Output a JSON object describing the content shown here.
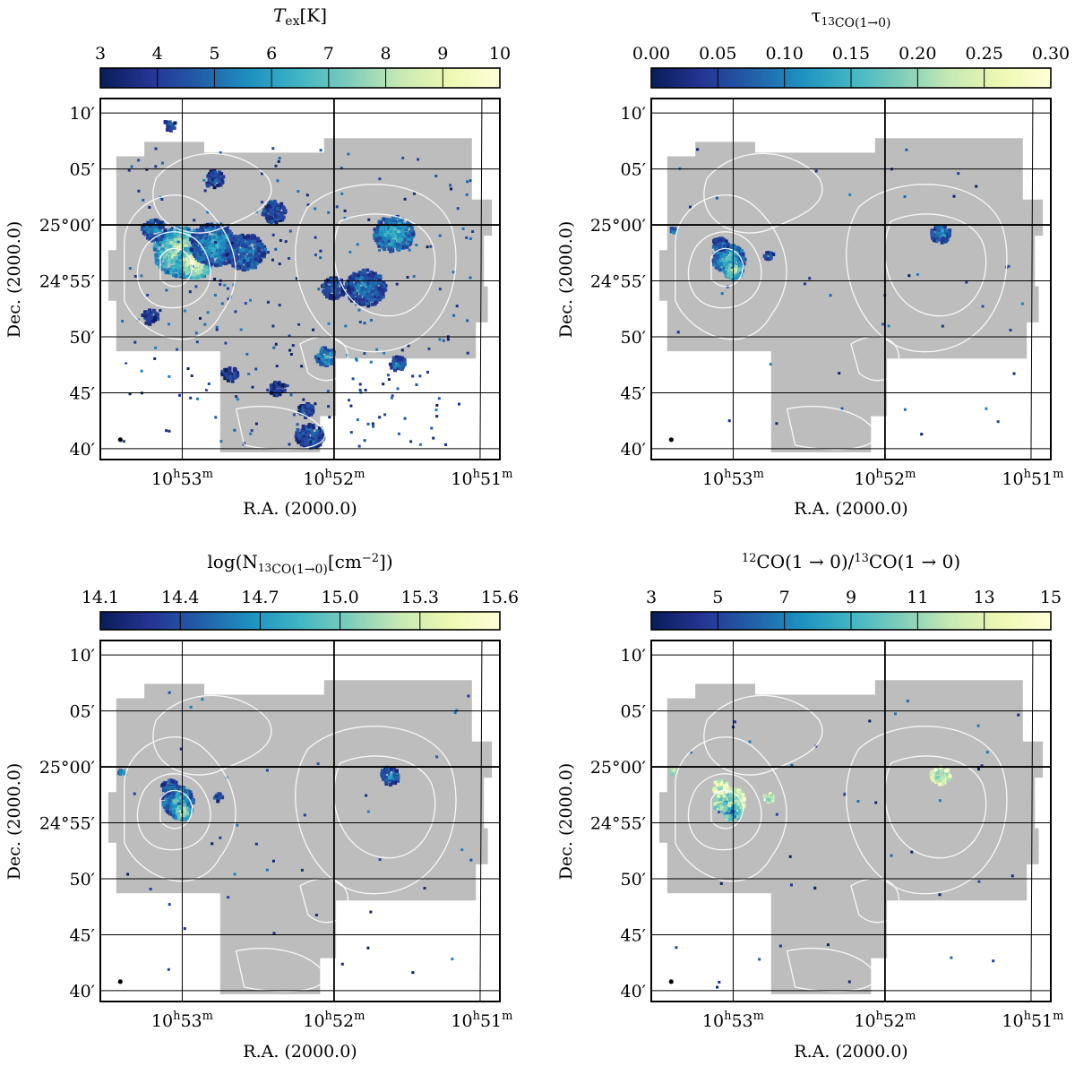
{
  "chart_data": [
    {
      "type": "heatmap",
      "title": "T_ex [K]",
      "title_parts": {
        "var": "T",
        "sub": "ex",
        "unit": "[K]"
      },
      "colorbar": {
        "ticks": [
          "3",
          "4",
          "5",
          "6",
          "7",
          "8",
          "9",
          "10"
        ],
        "range": [
          3,
          10
        ],
        "colormap": "YlGnBu_r"
      },
      "x_ticks": [
        "10h53m",
        "10h52m",
        "10h51m"
      ],
      "x_tick_parts": [
        {
          "h": "10",
          "m": "53"
        },
        {
          "h": "10",
          "m": "52"
        },
        {
          "h": "10",
          "m": "51"
        }
      ],
      "y_ticks": [
        "10′",
        "05′",
        "25°00′",
        "24°55′",
        "50′",
        "45′",
        "40′"
      ],
      "xlabel": "R.A. (2000.0)",
      "ylabel": "Dec. (2000.0)",
      "emission": "extended"
    },
    {
      "type": "heatmap",
      "title": "τ13CO(1→0)",
      "title_parts": {
        "main": "τ",
        "sup": "13",
        "sub": "CO(1→0)"
      },
      "colorbar": {
        "ticks": [
          "0.00",
          "0.05",
          "0.10",
          "0.15",
          "0.20",
          "0.25",
          "0.30"
        ],
        "range": [
          0.0,
          0.3
        ],
        "colormap": "YlGnBu_r"
      },
      "x_ticks": [
        "10h53m",
        "10h52m",
        "10h51m"
      ],
      "x_tick_parts": [
        {
          "h": "10",
          "m": "53"
        },
        {
          "h": "10",
          "m": "52"
        },
        {
          "h": "10",
          "m": "51"
        }
      ],
      "y_ticks": [
        "10′",
        "05′",
        "25°00′",
        "24°55′",
        "50′",
        "45′",
        "40′"
      ],
      "xlabel": "R.A. (2000.0)",
      "ylabel": "Dec. (2000.0)",
      "emission": "compact"
    },
    {
      "type": "heatmap",
      "title": "log(N13CO(1→0)[cm−2])",
      "title_parts": {
        "pre": "log(N",
        "sup": "13",
        "sub": "CO(1→0)",
        "unit": "[cm",
        "exp": "−2",
        "post": "])"
      },
      "colorbar": {
        "ticks": [
          "14.1",
          "14.4",
          "14.7",
          "15.0",
          "15.3",
          "15.6"
        ],
        "range": [
          14.1,
          15.6
        ],
        "colormap": "YlGnBu_r"
      },
      "x_ticks": [
        "10h53m",
        "10h52m",
        "10h51m"
      ],
      "x_tick_parts": [
        {
          "h": "10",
          "m": "53"
        },
        {
          "h": "10",
          "m": "52"
        },
        {
          "h": "10",
          "m": "51"
        }
      ],
      "y_ticks": [
        "10′",
        "05′",
        "25°00′",
        "24°55′",
        "50′",
        "45′",
        "40′"
      ],
      "xlabel": "R.A. (2000.0)",
      "ylabel": "Dec. (2000.0)",
      "emission": "compact"
    },
    {
      "type": "heatmap",
      "title": "12CO(1→0)/13CO(1→0)",
      "title_parts": {
        "sup1": "12",
        "mid": "CO(1 → 0)/",
        "sup2": "13",
        "end": "CO(1 → 0)"
      },
      "colorbar": {
        "ticks": [
          "3",
          "5",
          "7",
          "9",
          "11",
          "13",
          "15"
        ],
        "range": [
          3,
          15
        ],
        "colormap": "YlGnBu_r"
      },
      "x_ticks": [
        "10h53m",
        "10h52m",
        "10h51m"
      ],
      "x_tick_parts": [
        {
          "h": "10",
          "m": "53"
        },
        {
          "h": "10",
          "m": "52"
        },
        {
          "h": "10",
          "m": "51"
        }
      ],
      "y_ticks": [
        "10′",
        "05′",
        "25°00′",
        "24°55′",
        "50′",
        "45′",
        "40′"
      ],
      "xlabel": "R.A. (2000.0)",
      "ylabel": "Dec. (2000.0)",
      "emission": "compact"
    }
  ],
  "colors": {
    "map_background": "#bdbdbd",
    "contour": "#ffffff",
    "colormap_stops": [
      "#081d58",
      "#253494",
      "#225ea8",
      "#1d91c0",
      "#41b6c4",
      "#7fcdbb",
      "#c7e9b4",
      "#edf8b1",
      "#ffffd9"
    ]
  }
}
